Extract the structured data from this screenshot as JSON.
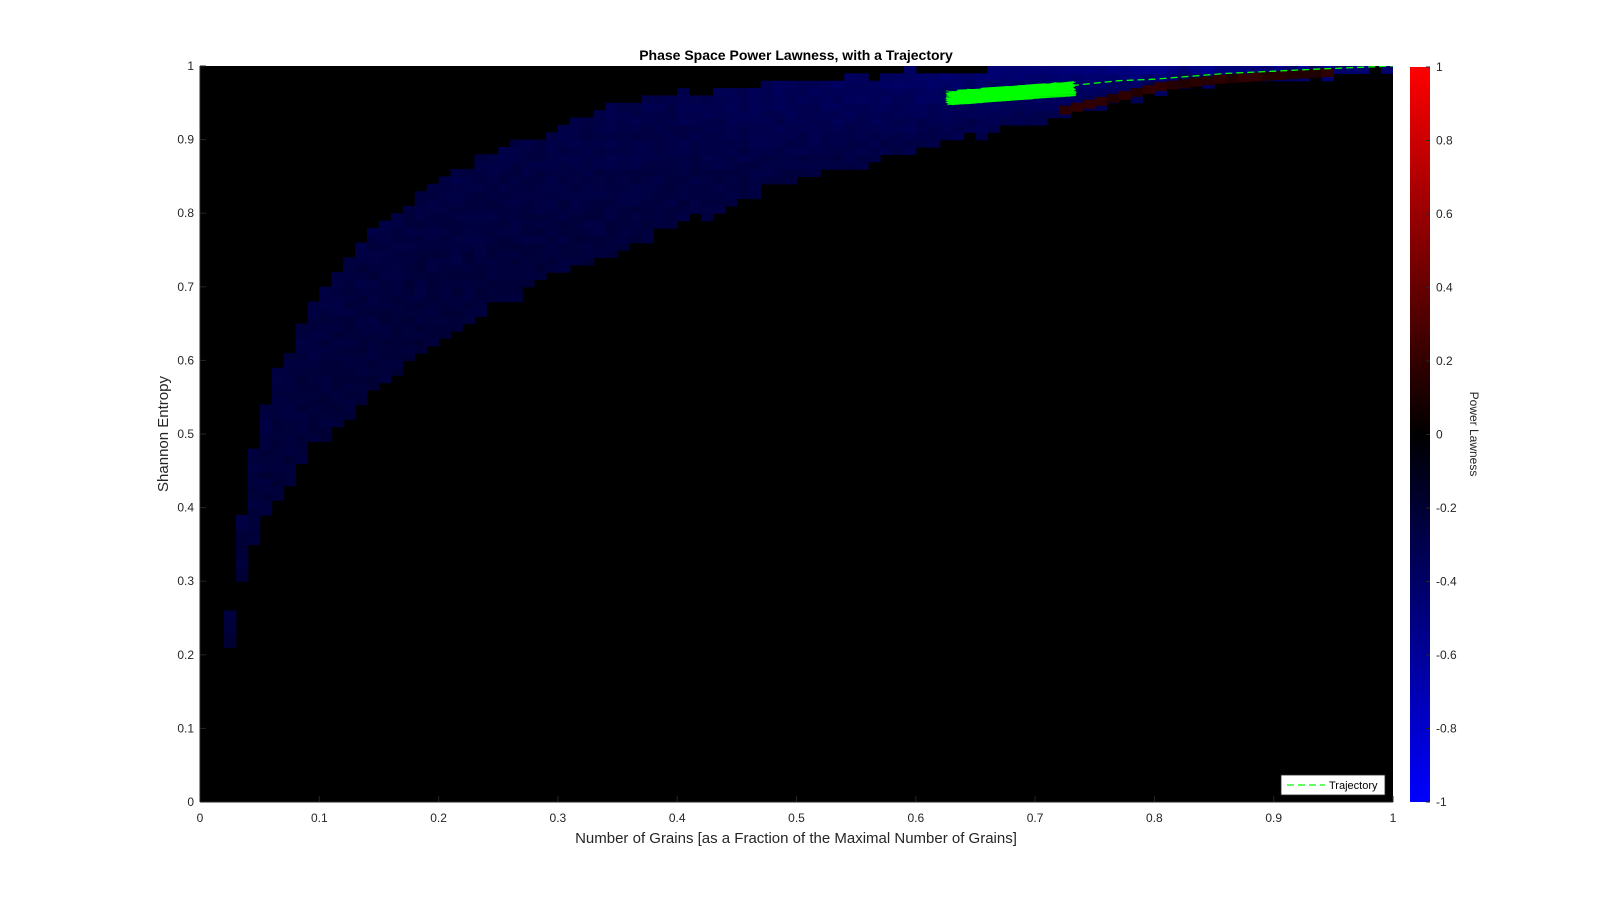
{
  "chart_data": {
    "type": "heatmap",
    "title": "Phase Space Power Lawness, with a Trajectory",
    "xlabel": "Number of Grains [as a Fraction of the Maximal Number of Grains]",
    "ylabel": "Shannon Entropy",
    "xlim": [
      0,
      1
    ],
    "ylim": [
      0,
      1
    ],
    "xticks": [
      "0",
      "0.1",
      "0.2",
      "0.3",
      "0.4",
      "0.5",
      "0.6",
      "0.7",
      "0.8",
      "0.9",
      "1"
    ],
    "yticks": [
      "0",
      "0.1",
      "0.2",
      "0.3",
      "0.4",
      "0.5",
      "0.6",
      "0.7",
      "0.8",
      "0.9",
      "1"
    ],
    "background_color": "#000000",
    "colorbar": {
      "label": "Power Lawness",
      "range": [
        -1,
        1
      ],
      "ticks": [
        "1",
        "0.8",
        "0.6",
        "0.4",
        "0.2",
        "0",
        "-0.2",
        "-0.4",
        "-0.6",
        "-0.8",
        "-1"
      ],
      "colors": {
        "negative": "#0000ff",
        "zero": "#000000",
        "positive": "#ff0000"
      }
    },
    "region": {
      "description": "populated region of phase space",
      "upper_boundary": [
        [
          0.02,
          0.15
        ],
        [
          0.03,
          0.35
        ],
        [
          0.04,
          0.43
        ],
        [
          0.05,
          0.52
        ],
        [
          0.07,
          0.6
        ],
        [
          0.09,
          0.66
        ],
        [
          0.12,
          0.73
        ],
        [
          0.15,
          0.78
        ],
        [
          0.2,
          0.84
        ],
        [
          0.25,
          0.88
        ],
        [
          0.3,
          0.91
        ],
        [
          0.35,
          0.94
        ],
        [
          0.4,
          0.96
        ],
        [
          0.5,
          0.975
        ],
        [
          0.6,
          0.985
        ],
        [
          0.7,
          0.995
        ],
        [
          0.8,
          0.998
        ],
        [
          0.9,
          0.999
        ],
        [
          1.0,
          1.0
        ]
      ],
      "lower_boundary": [
        [
          0.02,
          0.15
        ],
        [
          0.03,
          0.28
        ],
        [
          0.05,
          0.38
        ],
        [
          0.07,
          0.43
        ],
        [
          0.09,
          0.48
        ],
        [
          0.12,
          0.52
        ],
        [
          0.15,
          0.57
        ],
        [
          0.2,
          0.63
        ],
        [
          0.25,
          0.68
        ],
        [
          0.3,
          0.72
        ],
        [
          0.35,
          0.75
        ],
        [
          0.4,
          0.79
        ],
        [
          0.5,
          0.85
        ],
        [
          0.6,
          0.89
        ],
        [
          0.65,
          0.91
        ],
        [
          0.7,
          0.93
        ],
        [
          0.75,
          0.95
        ],
        [
          0.8,
          0.97
        ],
        [
          0.85,
          0.98
        ],
        [
          0.9,
          0.985
        ],
        [
          0.95,
          0.99
        ],
        [
          1.0,
          1.0
        ]
      ],
      "value_far": -0.2,
      "value_near_top": -0.8,
      "red_band": {
        "x_range": [
          0.72,
          0.95
        ],
        "value": 0.2
      }
    },
    "series": [
      {
        "name": "Trajectory",
        "style": "dashed",
        "color": "#00ff00",
        "x": [
          0.63,
          0.67,
          0.71,
          0.74,
          0.77,
          0.8,
          0.83,
          0.86,
          0.9,
          0.94,
          1.0
        ],
        "y": [
          0.955,
          0.962,
          0.97,
          0.975,
          0.98,
          0.982,
          0.986,
          0.99,
          0.993,
          0.996,
          1.0
        ]
      }
    ],
    "cluster": {
      "x_center": 0.68,
      "y_center": 0.963,
      "x_spread": 0.055,
      "y_spread": 0.01,
      "color": "#00ff00"
    },
    "legend": {
      "entries": [
        "Trajectory"
      ],
      "location": "bottom-right"
    }
  }
}
